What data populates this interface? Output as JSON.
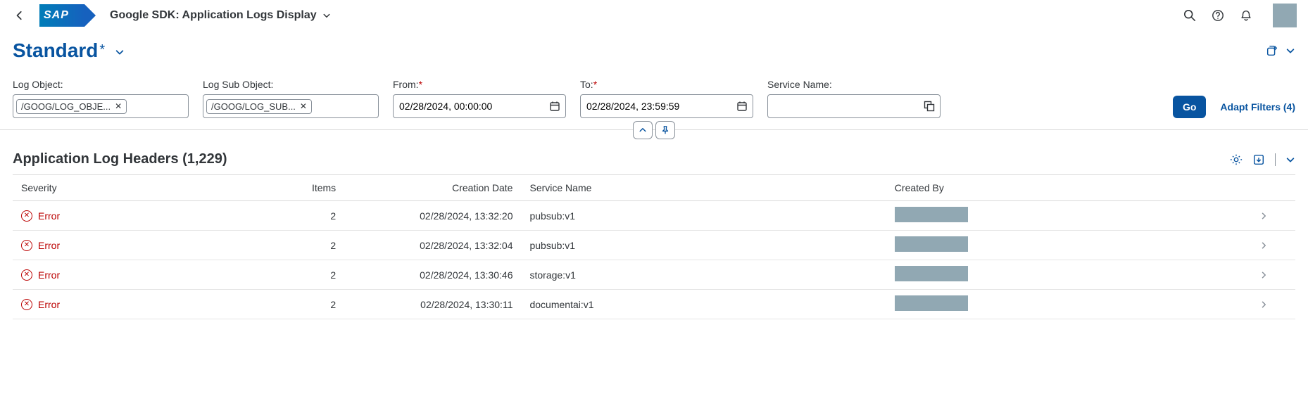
{
  "header": {
    "logo_text": "SAP",
    "title": "Google SDK: Application Logs Display"
  },
  "variant": {
    "name": "Standard",
    "modified_marker": "*"
  },
  "filters": {
    "log_object": {
      "label": "Log Object:",
      "token": "/GOOG/LOG_OBJE..."
    },
    "log_sub_object": {
      "label": "Log Sub Object:",
      "token": "/GOOG/LOG_SUB..."
    },
    "from": {
      "label": "From:",
      "value": "02/28/2024, 00:00:00"
    },
    "to": {
      "label": "To:",
      "value": "02/28/2024, 23:59:59"
    },
    "service_name": {
      "label": "Service Name:",
      "value": ""
    },
    "go_label": "Go",
    "adapt_label": "Adapt Filters (4)"
  },
  "table": {
    "title": "Application Log Headers (1,229)",
    "columns": {
      "severity": "Severity",
      "items": "Items",
      "creation_date": "Creation Date",
      "service_name": "Service Name",
      "created_by": "Created By"
    },
    "rows": [
      {
        "severity": "Error",
        "items": "2",
        "date": "02/28/2024, 13:32:20",
        "service": "pubsub:v1"
      },
      {
        "severity": "Error",
        "items": "2",
        "date": "02/28/2024, 13:32:04",
        "service": "pubsub:v1"
      },
      {
        "severity": "Error",
        "items": "2",
        "date": "02/28/2024, 13:30:46",
        "service": "storage:v1"
      },
      {
        "severity": "Error",
        "items": "2",
        "date": "02/28/2024, 13:30:11",
        "service": "documentai:v1"
      }
    ]
  },
  "colors": {
    "brand": "#0854a0",
    "error": "#b00",
    "avatar_bg": "#91a8b3",
    "border": "#d9d9d9"
  }
}
